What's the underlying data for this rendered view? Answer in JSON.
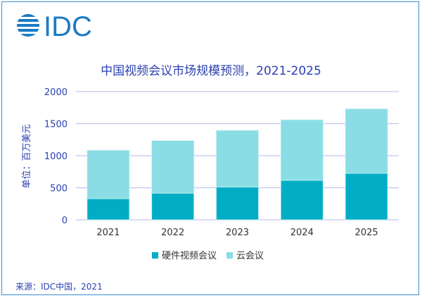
{
  "logo_text": "IDC",
  "chart_data": {
    "type": "bar",
    "stacked": true,
    "title": "中国视频会议市场规模预测，2021-2025",
    "ylabel": "单位：百万美元",
    "xlabel": "",
    "categories": [
      "2021",
      "2022",
      "2023",
      "2024",
      "2025"
    ],
    "series": [
      {
        "name": "硬件视频会议",
        "values": [
          330,
          415,
          510,
          615,
          725
        ],
        "color": "#00adc5"
      },
      {
        "name": "云会议",
        "values": [
          755,
          820,
          885,
          945,
          1005
        ],
        "color": "#8adde4"
      }
    ],
    "ylim": [
      0,
      2000
    ],
    "yticks": [
      0,
      500,
      1000,
      1500,
      2000
    ],
    "grid": true,
    "legend_position": "bottom"
  },
  "source": "来源：IDC中国，2021",
  "colors": {
    "text": "#2a3fb0",
    "grid": "#c5c5ef",
    "logo": "#1a7bc4"
  }
}
